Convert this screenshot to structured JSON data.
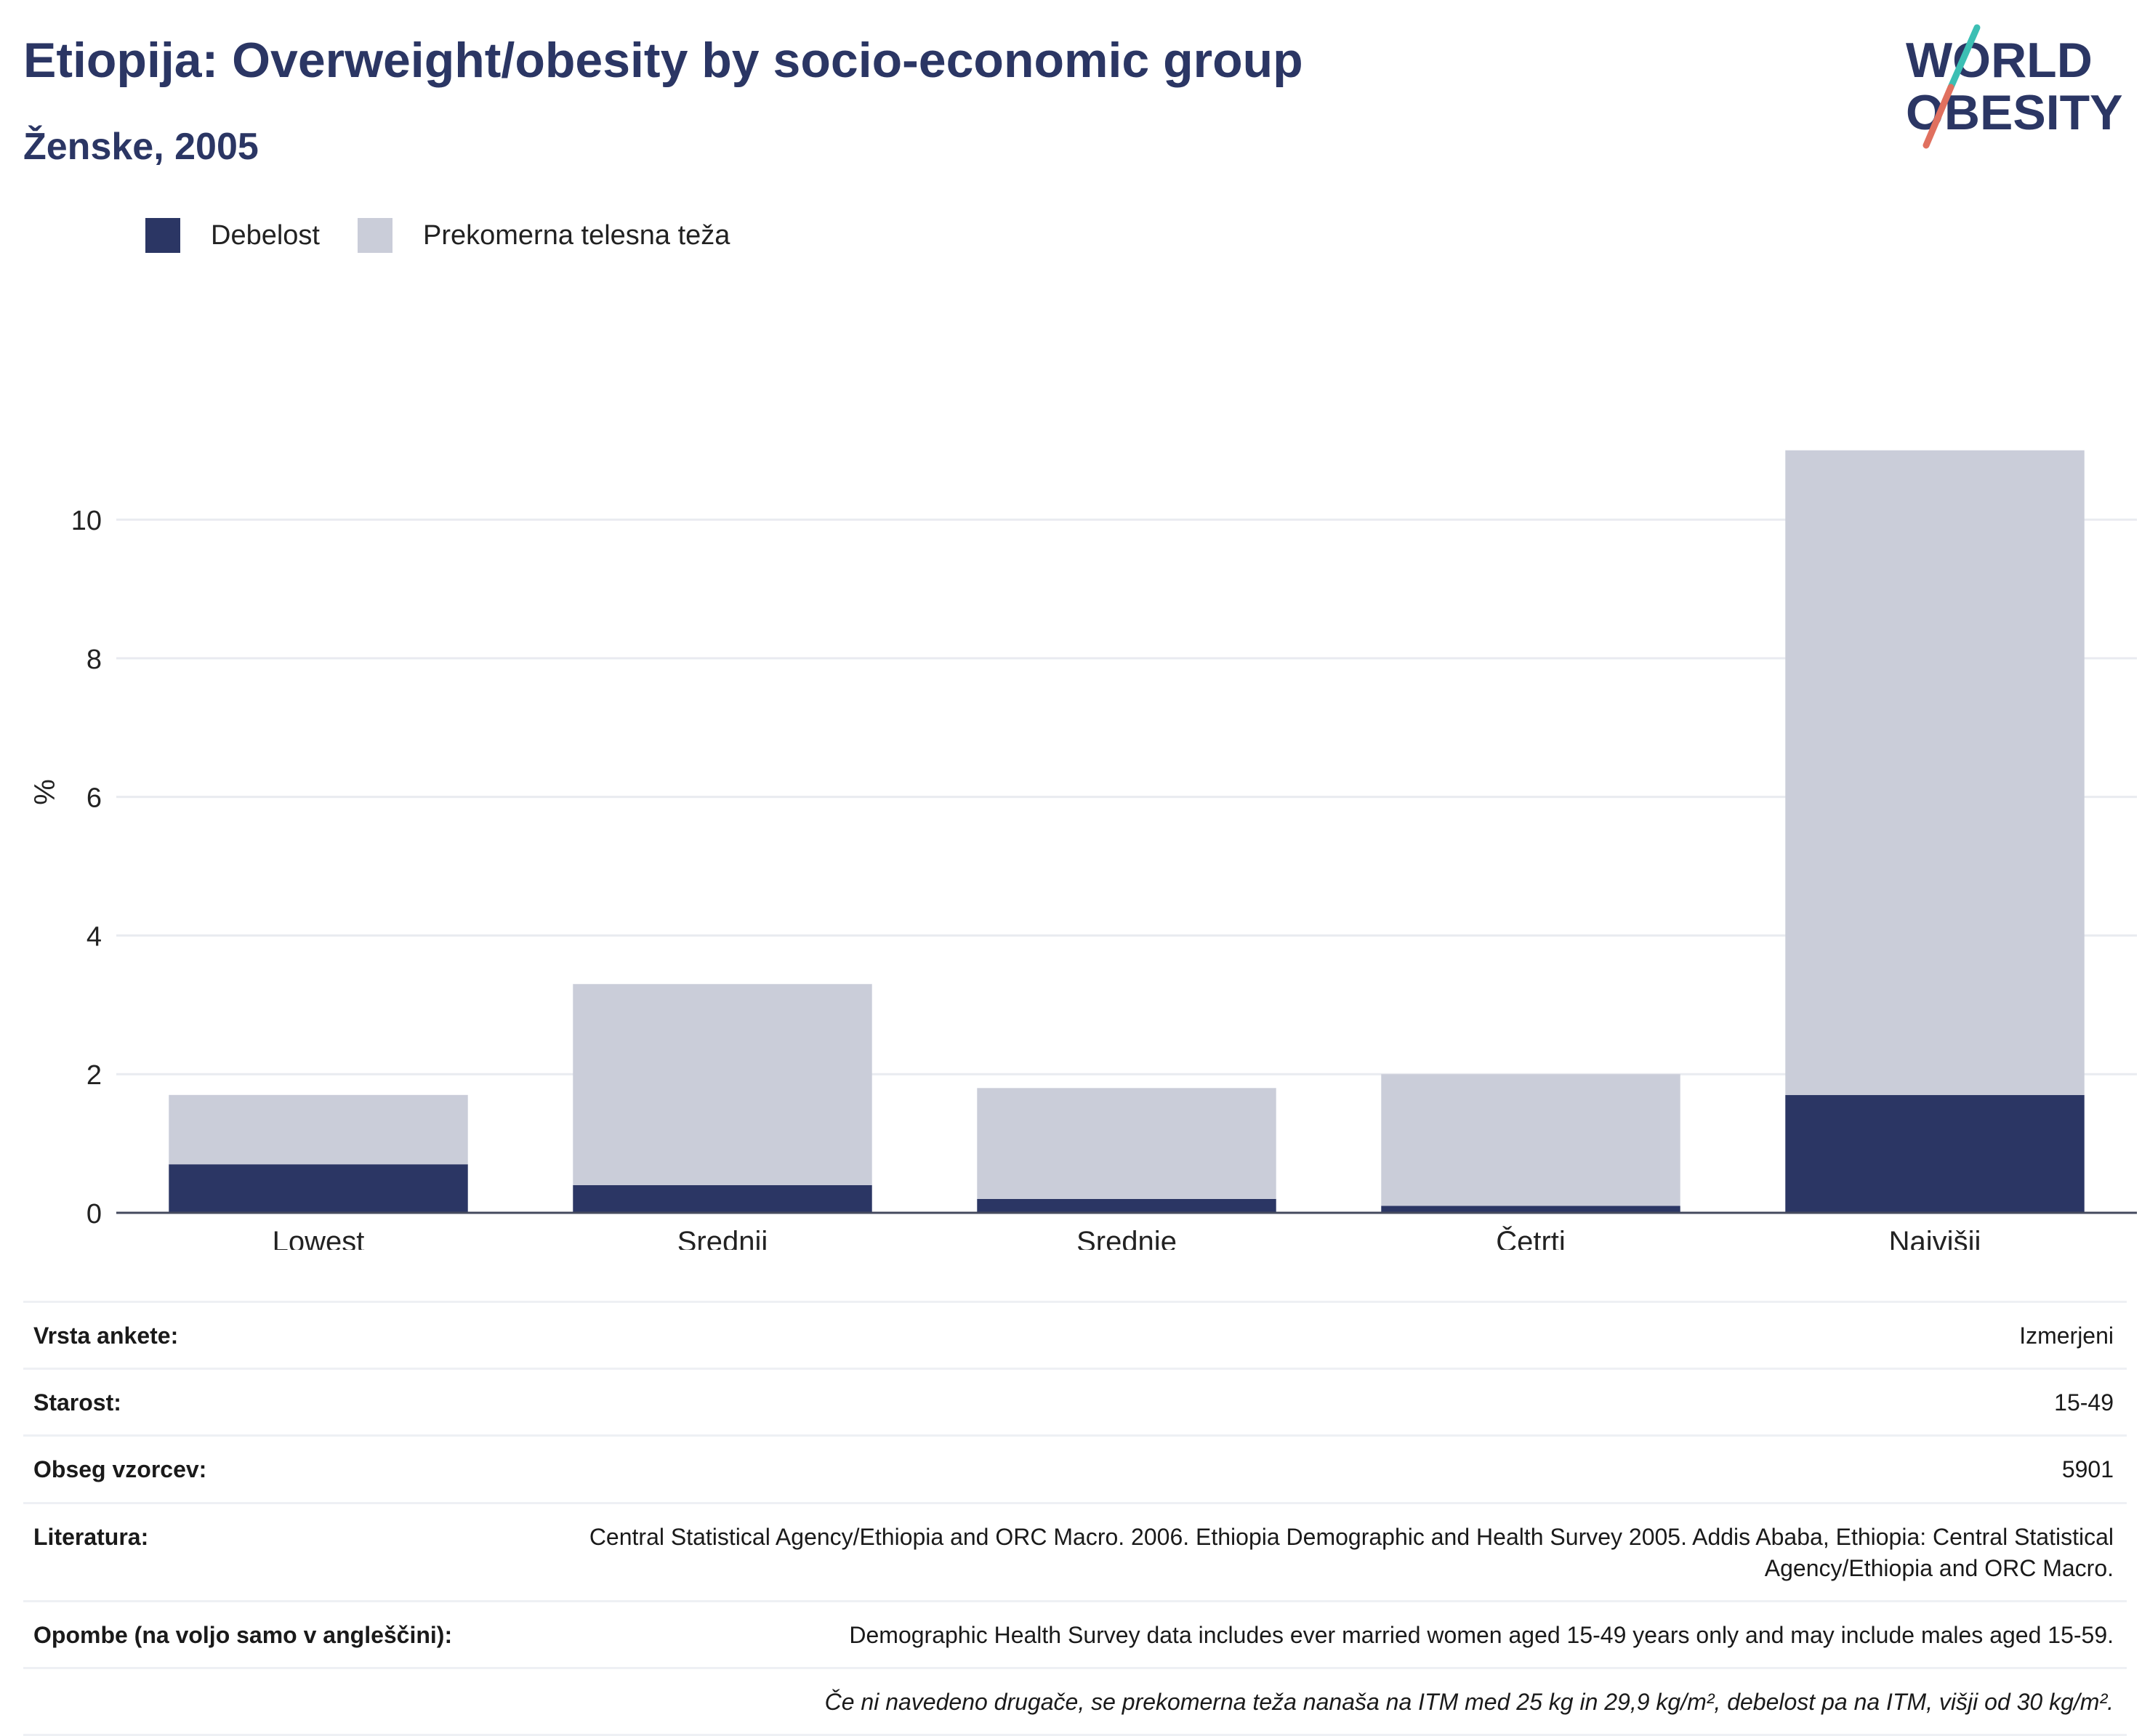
{
  "header": {
    "title": "Etiopija: Overweight/obesity by socio-economic group",
    "subtitle": "Ženske, 2005"
  },
  "logo": {
    "line1": "WORLD",
    "line2": "OBESITY",
    "colors": {
      "text": "#2b3664",
      "slash_top": "#3cbfb4",
      "slash_bottom": "#e0705f"
    }
  },
  "legend": [
    {
      "label": "Debelost",
      "color": "#2b3664"
    },
    {
      "label": "Prekomerna telesna teža",
      "color": "#cacdd9"
    }
  ],
  "chart_data": {
    "type": "bar",
    "stacked": true,
    "categories": [
      "Lowest",
      "Srednji",
      "Srednje",
      "Četrti",
      "Najvišji"
    ],
    "series": [
      {
        "name": "Debelost",
        "color": "#2b3664",
        "values": [
          0.7,
          0.4,
          0.2,
          0.1,
          1.7
        ]
      },
      {
        "name": "Prekomerna telesna teža",
        "color": "#cacdd9",
        "values": [
          1.0,
          2.9,
          1.6,
          1.9,
          9.3
        ]
      }
    ],
    "ylabel": "%",
    "ylim": [
      0,
      11.5
    ],
    "yticks": [
      0,
      2,
      4,
      6,
      8,
      10
    ],
    "grid": true,
    "legend_position": "top-left"
  },
  "info": {
    "rows": [
      {
        "key": "Vrsta ankete:",
        "value": "Izmerjeni"
      },
      {
        "key": "Starost:",
        "value": "15-49"
      },
      {
        "key": "Obseg vzorcev:",
        "value": "5901"
      },
      {
        "key": "Literatura:",
        "value": "Central Statistical Agency/Ethiopia and ORC Macro. 2006. Ethiopia Demographic and Health Survey 2005. Addis Ababa, Ethiopia: Central Statistical Agency/Ethiopia and ORC Macro."
      },
      {
        "key": "Opombe (na voljo samo v angleščini):",
        "value": "Demographic Health Survey data includes ever married women aged 15-49 years only and may include males aged 15-59."
      }
    ],
    "footnote": "Če ni navedeno drugače, se prekomerna teža nanaša na ITM med 25 kg in 29,9 kg/m², debelost pa na ITM, višji od 30 kg/m²."
  }
}
